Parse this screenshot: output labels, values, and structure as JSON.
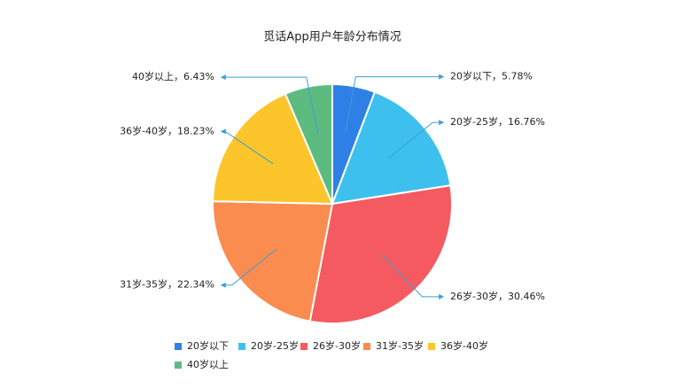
{
  "chart_data": {
    "type": "pie",
    "title": "觅话App用户年龄分布情况",
    "categories": [
      "20岁以下",
      "20岁-25岁",
      "26岁-30岁",
      "31岁-35岁",
      "36岁-40岁",
      "40岁以上"
    ],
    "values": [
      5.78,
      16.76,
      30.46,
      22.34,
      18.23,
      6.43
    ],
    "value_labels": [
      "20岁以下，5.78%",
      "20岁-25岁，16.76%",
      "26岁-30岁，30.46%",
      "31岁-35岁，22.34%",
      "36岁-40岁，18.23%",
      "40岁以上，6.43%"
    ],
    "colors": [
      "#2f80e6",
      "#3ec0ee",
      "#f55a60",
      "#fa8c50",
      "#fcc52b",
      "#5dbb80"
    ],
    "legend": "bottom"
  }
}
